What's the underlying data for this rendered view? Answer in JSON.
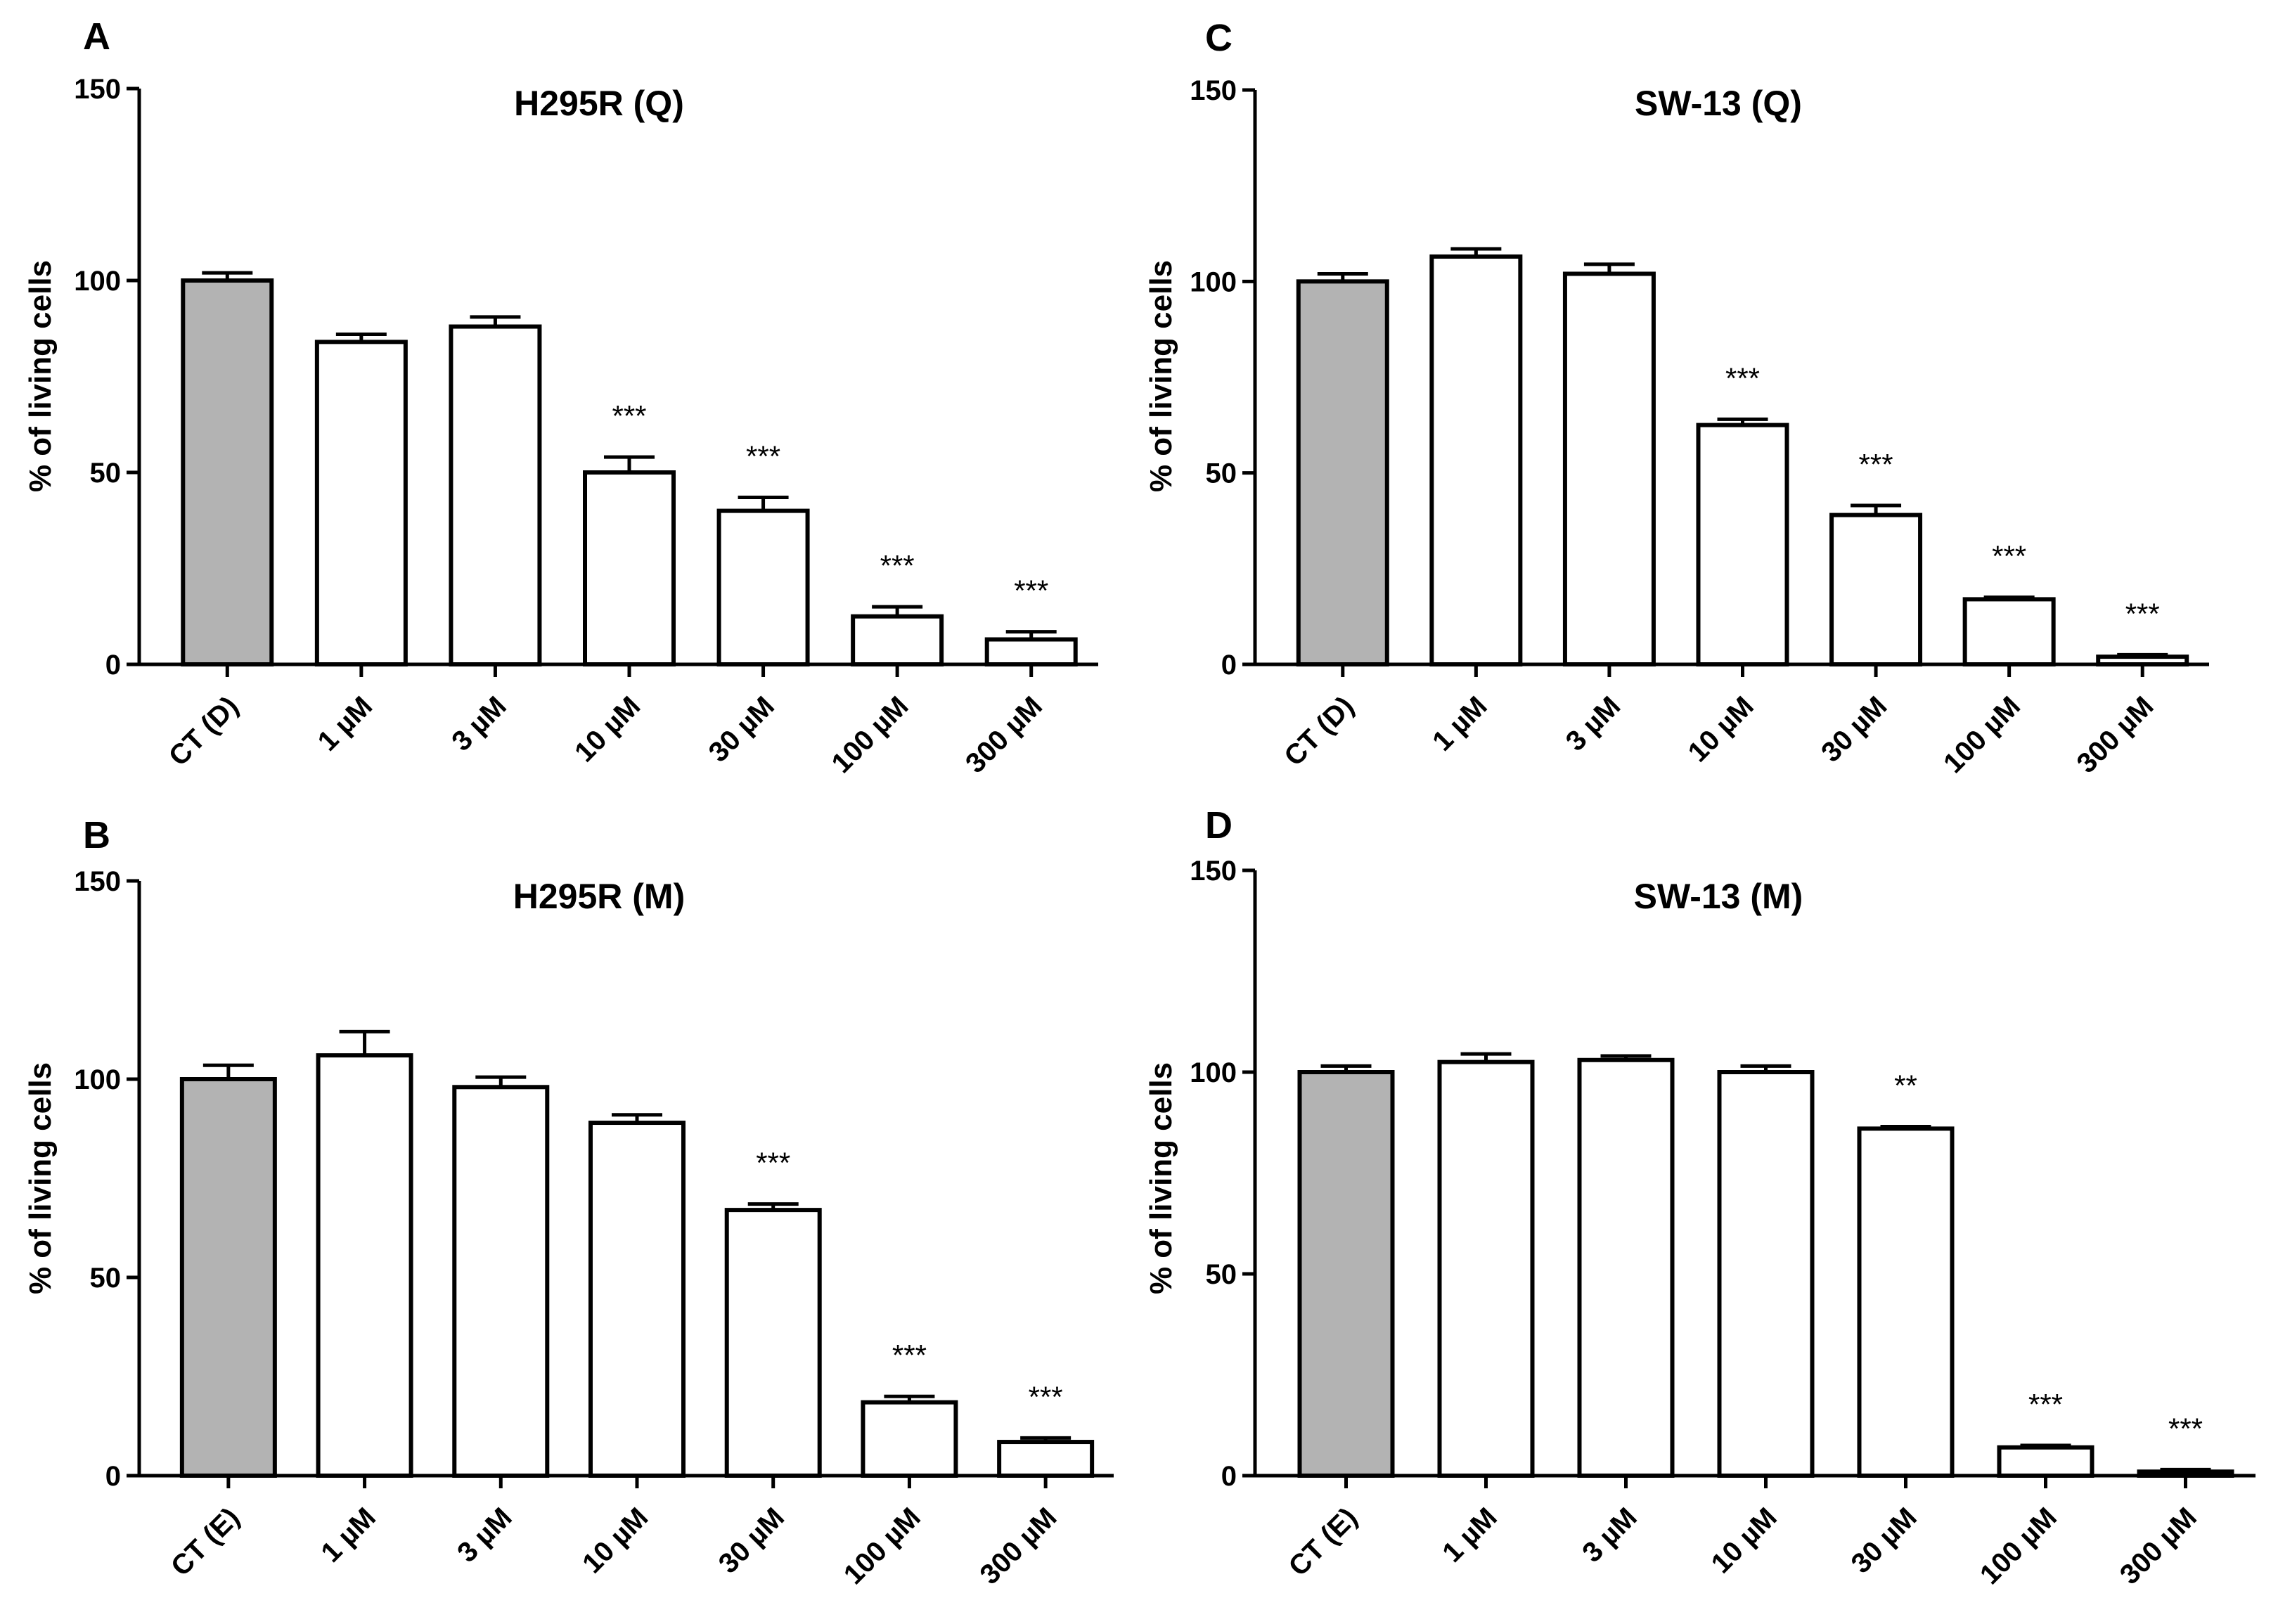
{
  "figure": {
    "background": "#ffffff"
  },
  "style": {
    "control_fill": "#b3b3b3",
    "treated_fill": "#ffffff",
    "stroke": "#000000"
  },
  "chart_data": [
    {
      "type": "bar",
      "panel": "A",
      "title": "H295R (Q)",
      "ylabel": "% of living cells",
      "xlabel": "",
      "ylim": [
        0,
        150
      ],
      "yticks": [
        0,
        50,
        100,
        150
      ],
      "categories": [
        "CT (D)",
        "1 µM",
        "3 µM",
        "10 µM",
        "30 µM",
        "100 µM",
        "300 µM"
      ],
      "values": [
        100,
        84,
        88,
        50,
        40,
        12.5,
        6.5
      ],
      "errors": [
        2,
        2,
        2.5,
        4,
        3.5,
        2.5,
        2
      ],
      "significance": [
        "",
        "",
        "",
        "***",
        "***",
        "***",
        "***"
      ],
      "grid": false
    },
    {
      "type": "bar",
      "panel": "B",
      "title": "H295R (M)",
      "ylabel": "%  of living cells",
      "xlabel": "",
      "ylim": [
        0,
        150
      ],
      "yticks": [
        0,
        50,
        100,
        150
      ],
      "categories": [
        "CT (E)",
        "1 µM",
        "3 µM",
        "10 µM",
        "30 µM",
        "100 µM",
        "300 µM"
      ],
      "values": [
        100,
        106,
        98,
        89,
        67,
        18.5,
        8.5
      ],
      "errors": [
        3.5,
        6,
        2.5,
        2,
        1.5,
        1.5,
        1
      ],
      "significance": [
        "",
        "",
        "",
        "",
        "***",
        "***",
        "***"
      ],
      "grid": false
    },
    {
      "type": "bar",
      "panel": "C",
      "title": "SW-13 (Q)",
      "ylabel": "% of living cells",
      "xlabel": "",
      "ylim": [
        0,
        150
      ],
      "yticks": [
        0,
        50,
        100,
        150
      ],
      "categories": [
        "CT (D)",
        "1 µM",
        "3 µM",
        "10 µM",
        "30 µM",
        "100 µM",
        "300 µM"
      ],
      "values": [
        100,
        106.5,
        102,
        62.5,
        39,
        17,
        2
      ],
      "errors": [
        2,
        2,
        2.5,
        1.5,
        2.5,
        0.5,
        0.5
      ],
      "significance": [
        "",
        "",
        "",
        "***",
        "***",
        "***",
        "***"
      ],
      "grid": false
    },
    {
      "type": "bar",
      "panel": "D",
      "title": "SW-13 (M)",
      "ylabel": "%  of living cells",
      "xlabel": "",
      "ylim": [
        0,
        150
      ],
      "yticks": [
        0,
        50,
        100,
        150
      ],
      "categories": [
        "CT (E)",
        "1 µM",
        "3 µM",
        "10 µM",
        "30 µM",
        "100 µM",
        "300 µM"
      ],
      "values": [
        100,
        102.5,
        103,
        100,
        86,
        7,
        1
      ],
      "errors": [
        1.5,
        2,
        1,
        1.5,
        0.5,
        0.5,
        0.5
      ],
      "significance": [
        "",
        "",
        "",
        "",
        "**",
        "***",
        "***"
      ],
      "grid": false
    }
  ]
}
